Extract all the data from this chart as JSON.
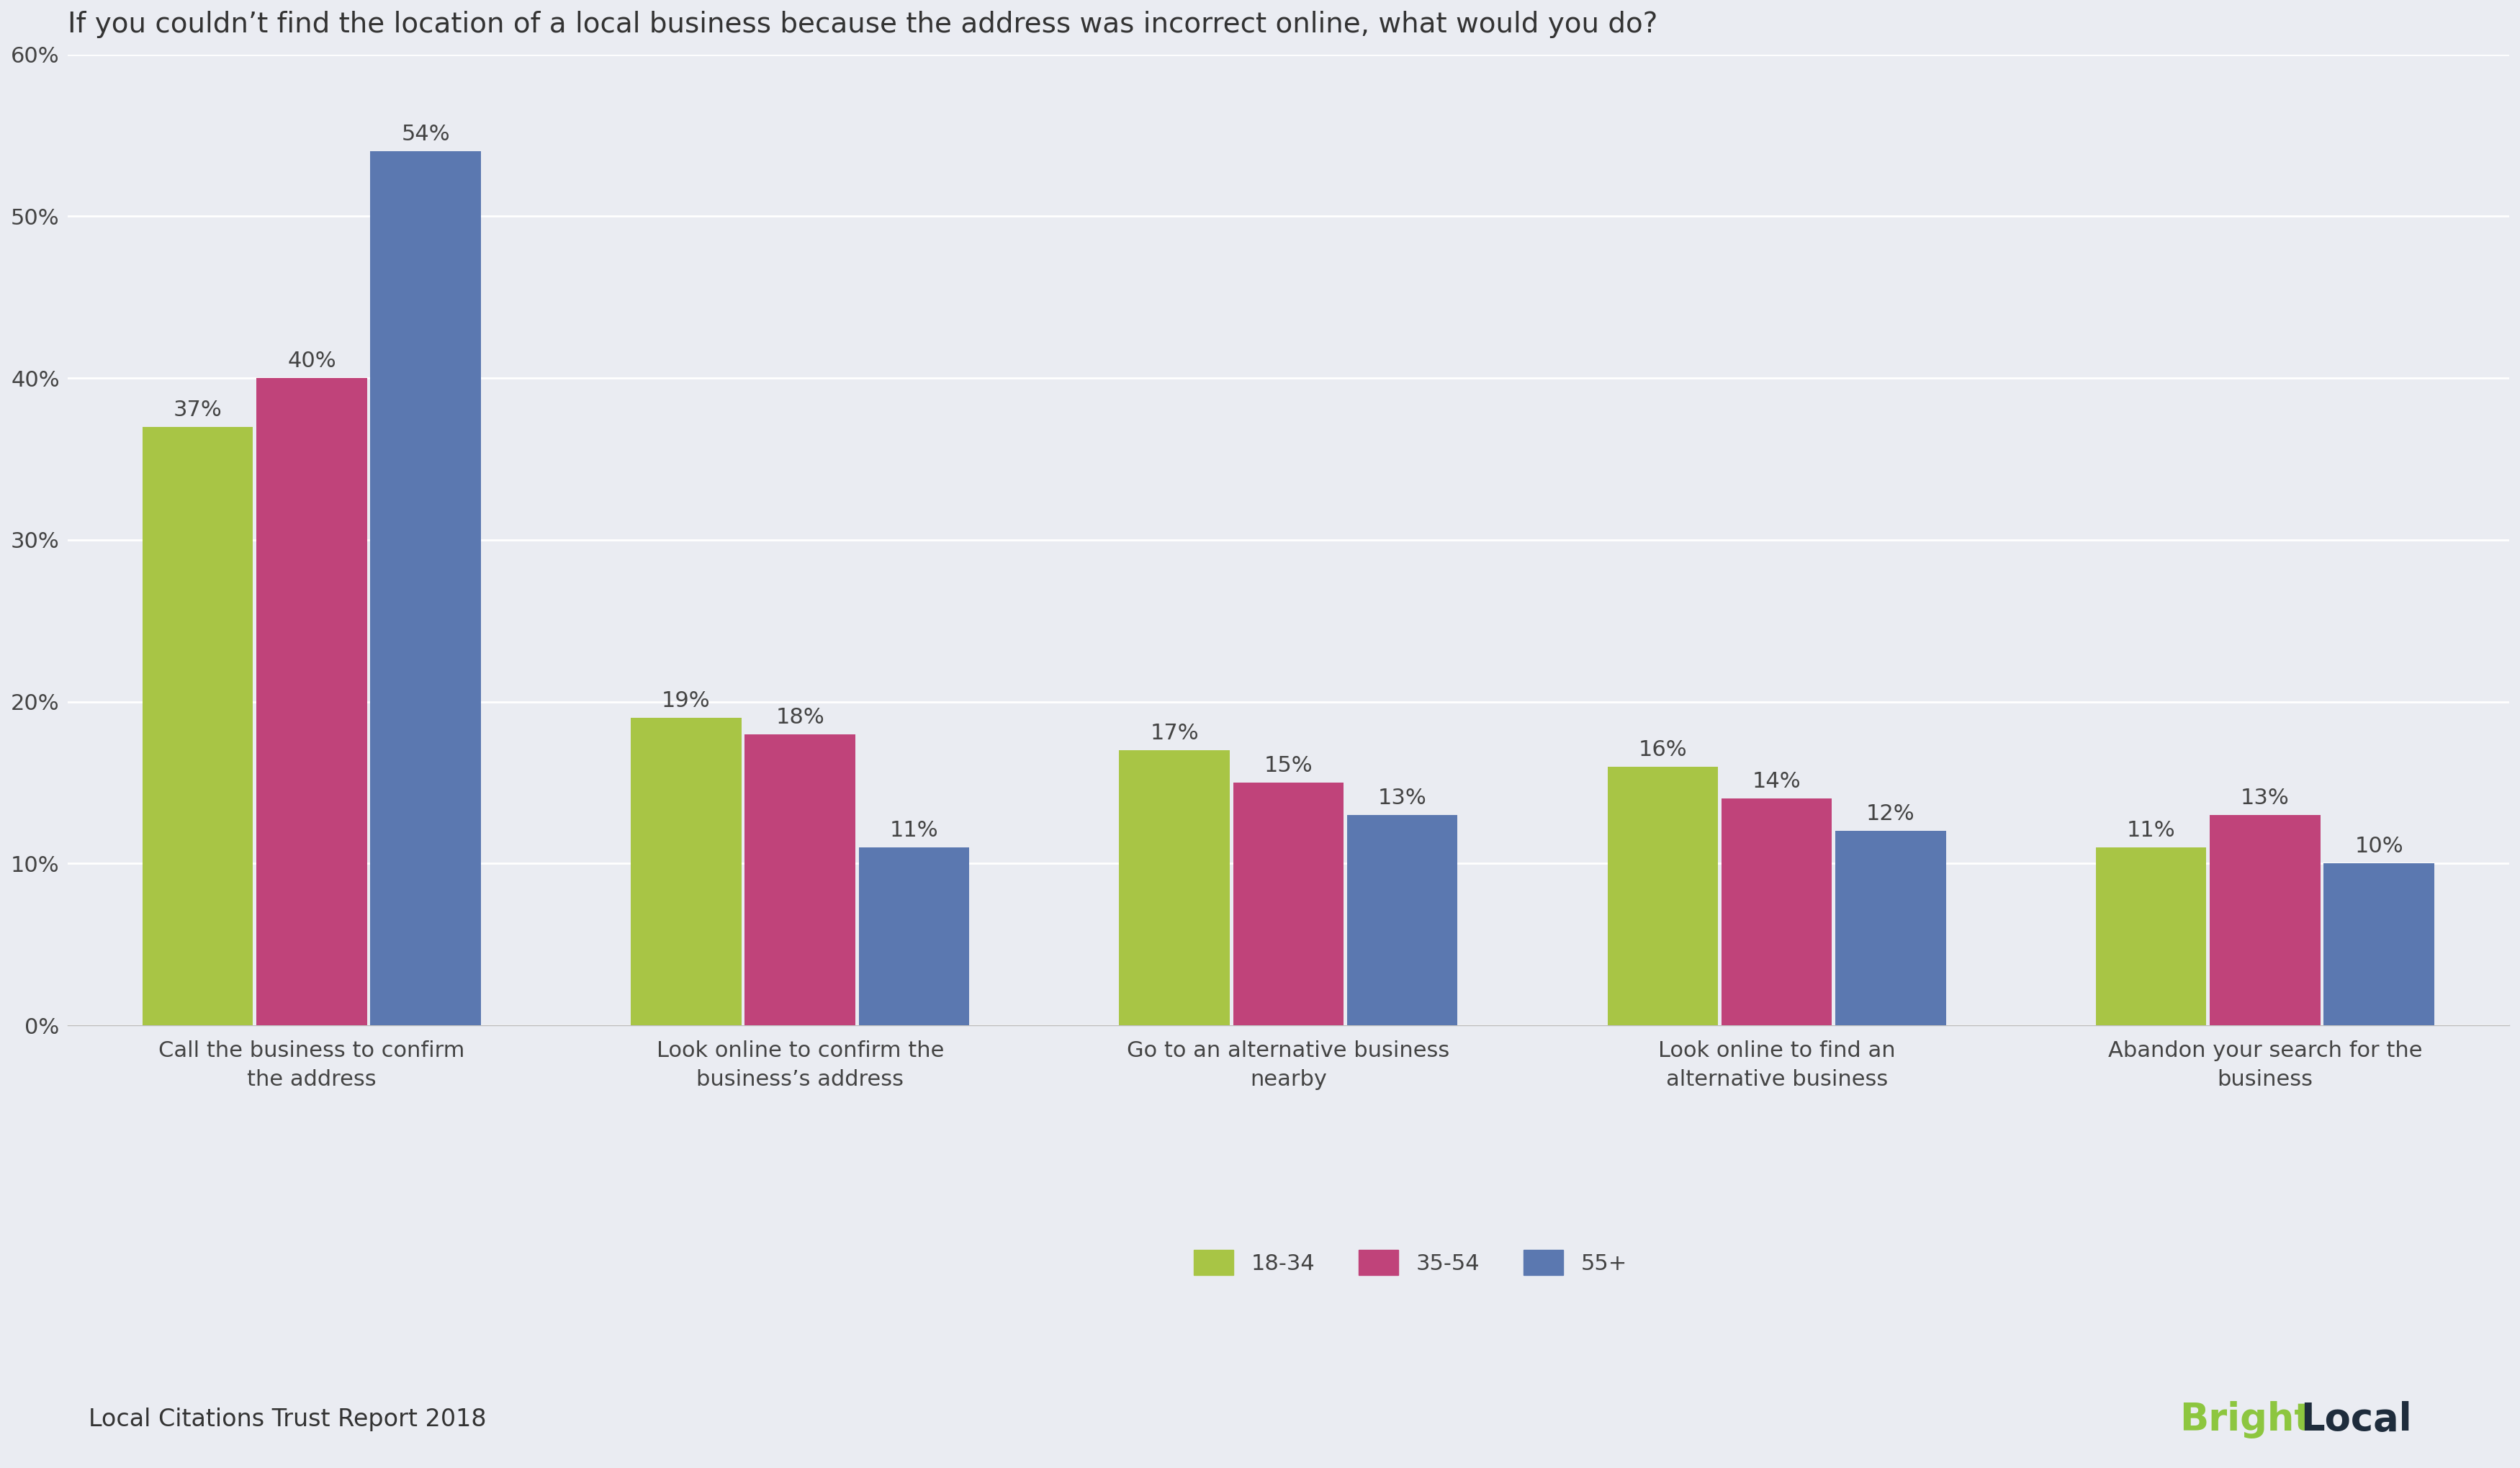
{
  "title": "If you couldn’t find the location of a local business because the address was incorrect online, what would you do?",
  "categories": [
    "Call the business to confirm\nthe address",
    "Look online to confirm the\nbusiness’s address",
    "Go to an alternative business\nnearby",
    "Look online to find an\nalternative business",
    "Abandon your search for the\nbusiness"
  ],
  "series": {
    "18-34": [
      37,
      19,
      17,
      16,
      11
    ],
    "35-54": [
      40,
      18,
      15,
      14,
      13
    ],
    "55+": [
      54,
      11,
      13,
      12,
      10
    ]
  },
  "colors": {
    "18-34": "#a8c545",
    "35-54": "#c0437a",
    "55+": "#5b78b0"
  },
  "ylim": [
    0,
    60
  ],
  "yticks": [
    0,
    10,
    20,
    30,
    40,
    50,
    60
  ],
  "background_color": "#eaecf2",
  "title_fontsize": 28,
  "tick_fontsize": 22,
  "legend_fontsize": 22,
  "annotation_fontsize": 22,
  "footer_left": "Local Citations Trust Report 2018",
  "footer_fontsize": 24,
  "bright_color": "#8dc63f",
  "local_color": "#1e2c3c"
}
